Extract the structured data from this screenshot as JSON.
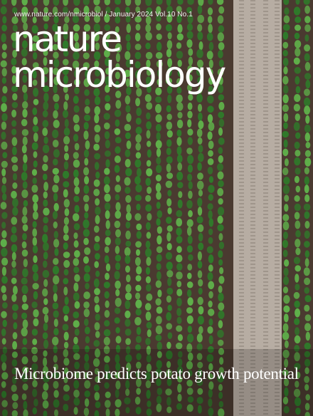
{
  "cover": {
    "issue_line": "www.nature.com/nmicrobiol / January 2024 Vol.10 No.1",
    "masthead": [
      "nature",
      "microbiology"
    ],
    "headline": "Microbiome predicts potato growth potential"
  },
  "colors": {
    "soil": "#4a3a30",
    "plant_light": "#5fb04a",
    "plant_dark": "#2f7a2a",
    "track": "#b7ada3",
    "text": "#ffffff"
  }
}
